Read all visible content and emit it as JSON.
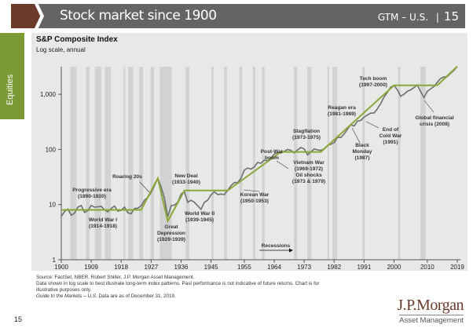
{
  "header": {
    "title": "Stock market since 1900",
    "section": "GTM – U.S.",
    "separator": "|",
    "page": "15"
  },
  "sidebar": {
    "label": "Equities"
  },
  "colors": {
    "header_bg": "#646464",
    "brand_brown": "#6b3a2a",
    "sidebar_green": "#7b9a36",
    "trend_line": "#8aa73a",
    "index_line": "#6e6e6e",
    "recession_band": "#d2d2d2",
    "panel_bg": "#e8e8e6"
  },
  "chart_data": {
    "type": "line",
    "title": "S&P Composite Index",
    "subtitle": "Log scale, annual",
    "y_scale": "log",
    "ylim": [
      1,
      4000
    ],
    "xlim": [
      1900,
      2020
    ],
    "y_ticks": [
      {
        "v": 1,
        "label": "1"
      },
      {
        "v": 10,
        "label": "10"
      },
      {
        "v": 100,
        "label": "100"
      },
      {
        "v": 1000,
        "label": "1,000"
      }
    ],
    "x_ticks": [
      1900,
      1909,
      1918,
      1927,
      1936,
      1945,
      1955,
      1964,
      1973,
      1982,
      1991,
      2000,
      2010,
      2019
    ],
    "grid": false,
    "index_series": {
      "x": [
        1900,
        1901,
        1902,
        1903,
        1904,
        1905,
        1906,
        1907,
        1908,
        1909,
        1910,
        1911,
        1912,
        1913,
        1914,
        1915,
        1916,
        1917,
        1918,
        1919,
        1920,
        1921,
        1922,
        1923,
        1924,
        1925,
        1926,
        1927,
        1928,
        1929,
        1930,
        1931,
        1932,
        1933,
        1934,
        1935,
        1936,
        1937,
        1938,
        1939,
        1940,
        1941,
        1942,
        1943,
        1944,
        1945,
        1946,
        1947,
        1948,
        1949,
        1950,
        1951,
        1952,
        1953,
        1954,
        1955,
        1956,
        1957,
        1958,
        1959,
        1960,
        1961,
        1962,
        1963,
        1964,
        1965,
        1966,
        1967,
        1968,
        1969,
        1970,
        1971,
        1972,
        1973,
        1974,
        1975,
        1976,
        1977,
        1978,
        1979,
        1980,
        1981,
        1982,
        1983,
        1984,
        1985,
        1986,
        1987,
        1988,
        1989,
        1990,
        1991,
        1992,
        1993,
        1994,
        1995,
        1996,
        1997,
        1998,
        1999,
        2000,
        2001,
        2002,
        2003,
        2004,
        2005,
        2006,
        2007,
        2008,
        2009,
        2010,
        2011,
        2012,
        2013,
        2014,
        2015,
        2016,
        2017,
        2018,
        2019
      ],
      "values": [
        6.1,
        7.5,
        8.3,
        6.4,
        7.0,
        9.0,
        9.6,
        7.2,
        7.8,
        9.6,
        9.0,
        9.1,
        9.3,
        8.0,
        7.4,
        8.5,
        9.4,
        7.6,
        7.9,
        9.0,
        7.1,
        6.8,
        8.5,
        8.6,
        9.5,
        12.0,
        13.5,
        16.5,
        22,
        30,
        21,
        13,
        6.0,
        9.5,
        9.8,
        11,
        15.5,
        17,
        11,
        12,
        11,
        9.5,
        8.2,
        11,
        12,
        15,
        17,
        15.2,
        15.5,
        15.2,
        18,
        22,
        25,
        25,
        30,
        42,
        46,
        44,
        48,
        58,
        56,
        64,
        62,
        70,
        82,
        88,
        86,
        92,
        100,
        96,
        86,
        98,
        108,
        102,
        80,
        90,
        102,
        98,
        96,
        102,
        118,
        124,
        132,
        165,
        164,
        190,
        232,
        280,
        265,
        325,
        335,
        385,
        420,
        455,
        458,
        545,
        680,
        890,
        1080,
        1350,
        1450,
        1200,
        920,
        1000,
        1130,
        1200,
        1320,
        1470,
        1120,
        870,
        1130,
        1250,
        1380,
        1650,
        1930,
        2060,
        2090,
        2400,
        2700,
        3200
      ]
    },
    "trend_series": {
      "x": [
        1900,
        1924,
        1929,
        1932,
        1937,
        1950,
        1966,
        1978,
        2000,
        2013,
        2019
      ],
      "values": [
        8,
        8,
        30,
        5,
        18,
        18,
        90,
        90,
        1450,
        1450,
        3200
      ]
    },
    "recessions": [
      [
        1902.7,
        1904.6
      ],
      [
        1907.4,
        1908.5
      ],
      [
        1910.1,
        1912.0
      ],
      [
        1913.1,
        1914.9
      ],
      [
        1918.7,
        1919.2
      ],
      [
        1920.1,
        1921.6
      ],
      [
        1923.4,
        1924.6
      ],
      [
        1926.8,
        1927.9
      ],
      [
        1929.6,
        1933.2
      ],
      [
        1937.4,
        1938.5
      ],
      [
        1945.1,
        1945.8
      ],
      [
        1948.9,
        1949.8
      ],
      [
        1953.5,
        1954.4
      ],
      [
        1957.6,
        1958.3
      ],
      [
        1960.3,
        1961.1
      ],
      [
        1969.9,
        1970.9
      ],
      [
        1973.9,
        1975.2
      ],
      [
        1980.0,
        1980.5
      ],
      [
        1981.5,
        1982.9
      ],
      [
        1990.5,
        1991.2
      ],
      [
        2001.2,
        2001.9
      ],
      [
        2007.9,
        2009.5
      ]
    ],
    "legend": {
      "recessions_label": "Recessions"
    },
    "annotations": [
      {
        "lines": [
          "Progressive era",
          "(1890-1920)"
        ]
      },
      {
        "lines": [
          "World War I",
          "(1914-1918)"
        ]
      },
      {
        "lines": [
          "Roaring 20s"
        ]
      },
      {
        "lines": [
          "New Deal",
          "(1933-1940)"
        ]
      },
      {
        "lines": [
          "Great",
          "Depression",
          "(1929-1939)"
        ]
      },
      {
        "lines": [
          "World War II",
          "(1939-1945)"
        ]
      },
      {
        "lines": [
          "Post-War",
          "boom"
        ]
      },
      {
        "lines": [
          "Korean War",
          "(1950-1953)"
        ]
      },
      {
        "lines": [
          "Stagflation",
          "(1973-1975)"
        ]
      },
      {
        "lines": [
          "Vietnam War",
          "(1969-1972)",
          "Oil shocks",
          "(1973 & 1979)"
        ]
      },
      {
        "lines": [
          "Reagan era",
          "(1981-1989)"
        ]
      },
      {
        "lines": [
          "Black",
          "Monday",
          "(1987)"
        ]
      },
      {
        "lines": [
          "End of",
          "Cold War",
          "(1991)"
        ]
      },
      {
        "lines": [
          "Tech boom",
          "(1997-2000)"
        ]
      },
      {
        "lines": [
          "Global financial",
          "crisis (2008)"
        ]
      }
    ]
  },
  "footnotes": {
    "source": "Source: FactSet, NBER, Robert Shiller, J.P. Morgan Asset Management.",
    "disclaimer": "Data shown in log scale to best illustrate long-term index patterns. Past performance is not indicative of future returns. Chart is for illustrative purposes only.",
    "guide_title": "Guide to the Markets – U.S.",
    "as_of": "Data are as of December 31, 2019."
  },
  "footer": {
    "page": "15",
    "logo_name": "J.P.Morgan",
    "logo_sub": "Asset Management"
  }
}
